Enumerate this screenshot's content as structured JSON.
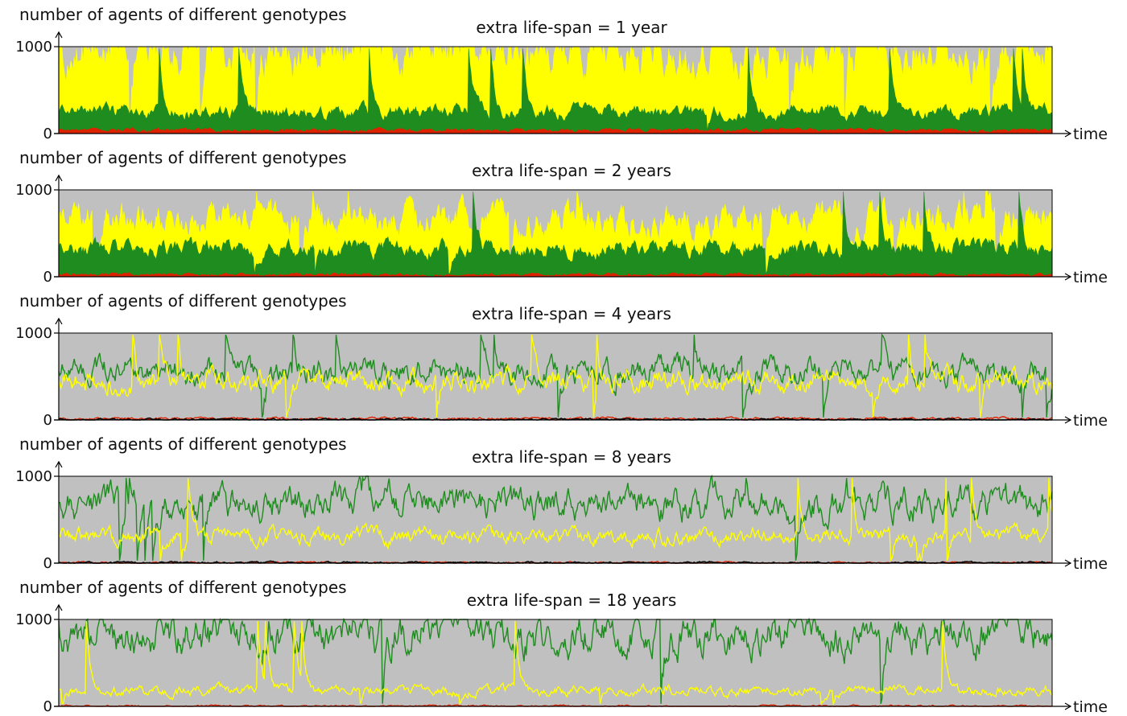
{
  "chart_data": [
    {
      "type": "area",
      "title": "extra life-span = 1 year",
      "ylabel": "number of agents of different genotypes",
      "xlabel": "time",
      "yticks": [
        "0",
        "1000"
      ],
      "ylim": [
        0,
        1000
      ],
      "colors": {
        "background": "#c0c0c0",
        "yellow": "#ffff00",
        "green": "#1e8c1e",
        "black": "#000000",
        "red": "#dd2200"
      },
      "series": [
        {
          "color": "#dd2200",
          "typical": 40
        },
        {
          "color": "#1e8c1e",
          "typical": 250
        },
        {
          "color": "#ffff00",
          "typical": 950
        },
        {
          "color": "#000000",
          "typical": 0
        }
      ]
    },
    {
      "type": "area",
      "title": "extra life-span = 2 years",
      "ylabel": "number of agents of different genotypes",
      "xlabel": "time",
      "yticks": [
        "0",
        "1000"
      ],
      "ylim": [
        0,
        1000
      ],
      "colors": {
        "background": "#c0c0c0",
        "yellow": "#ffff00",
        "green": "#1e8c1e",
        "black": "#000000",
        "red": "#dd2200"
      },
      "series": [
        {
          "color": "#dd2200",
          "typical": 25
        },
        {
          "color": "#1e8c1e",
          "typical": 320
        },
        {
          "color": "#ffff00",
          "typical": 650
        },
        {
          "color": "#000000",
          "typical": 0
        }
      ]
    },
    {
      "type": "line",
      "title": "extra life-span = 4 years",
      "ylabel": "number of agents of different genotypes",
      "xlabel": "time",
      "yticks": [
        "0",
        "1000"
      ],
      "ylim": [
        0,
        1000
      ],
      "colors": {
        "background": "#c0c0c0",
        "yellow": "#ffff00",
        "green": "#1e8c1e",
        "black": "#000000",
        "red": "#dd2200"
      },
      "series": [
        {
          "color": "#1e8c1e",
          "typical": 550
        },
        {
          "color": "#ffff00",
          "typical": 450
        },
        {
          "color": "#dd2200",
          "typical": 15
        },
        {
          "color": "#000000",
          "typical": 5
        }
      ]
    },
    {
      "type": "line",
      "title": "extra life-span = 8 years",
      "ylabel": "number of agents of different genotypes",
      "xlabel": "time",
      "yticks": [
        "0",
        "1000"
      ],
      "ylim": [
        0,
        1000
      ],
      "colors": {
        "background": "#c0c0c0",
        "yellow": "#ffff00",
        "green": "#1e8c1e",
        "black": "#000000",
        "red": "#dd2200"
      },
      "series": [
        {
          "color": "#1e8c1e",
          "typical": 680
        },
        {
          "color": "#ffff00",
          "typical": 310
        },
        {
          "color": "#dd2200",
          "typical": 5
        },
        {
          "color": "#000000",
          "typical": 5
        }
      ]
    },
    {
      "type": "line",
      "title": "extra life-span = 18 years",
      "ylabel": "number of agents of different genotypes",
      "xlabel": "time",
      "yticks": [
        "0",
        "1000"
      ],
      "ylim": [
        0,
        1000
      ],
      "colors": {
        "background": "#c0c0c0",
        "yellow": "#ffff00",
        "green": "#1e8c1e",
        "black": "#000000",
        "red": "#dd2200"
      },
      "series": [
        {
          "color": "#1e8c1e",
          "typical": 810
        },
        {
          "color": "#ffff00",
          "typical": 180
        },
        {
          "color": "#dd2200",
          "typical": 3
        }
      ]
    }
  ]
}
